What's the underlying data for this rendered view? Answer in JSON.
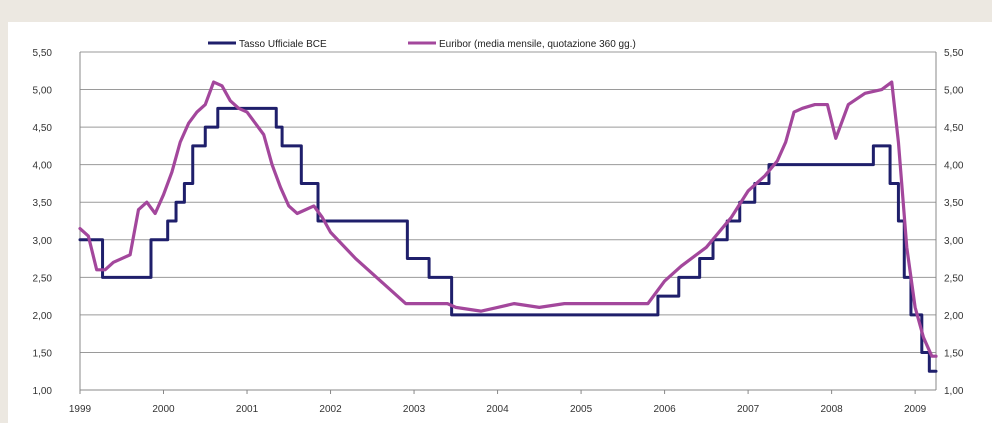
{
  "chart_data": {
    "type": "line",
    "title": "",
    "xlabel": "",
    "ylabel": "",
    "xlim": [
      1999.0,
      2009.25
    ],
    "ylim": [
      1.0,
      5.5
    ],
    "grid": true,
    "legend_position": "top",
    "x_tick_labels": [
      "1999",
      "2000",
      "2001",
      "2002",
      "2003",
      "2004",
      "2005",
      "2006",
      "2007",
      "2008",
      "2009"
    ],
    "x_tick_values": [
      1999,
      2000,
      2001,
      2002,
      2003,
      2004,
      2005,
      2006,
      2007,
      2008,
      2009
    ],
    "y_tick_values": [
      1.0,
      1.5,
      2.0,
      2.5,
      3.0,
      3.5,
      4.0,
      4.5,
      5.0,
      5.5
    ],
    "y_tick_labels_left": [
      "1,00",
      "1,50",
      "2,00",
      "2,50",
      "3,00",
      "3,50",
      "4,00",
      "4,50",
      "5,00",
      "5,50"
    ],
    "y_tick_labels_right": [
      "1,00",
      "1,50",
      "2,00",
      "2,50",
      "3,00",
      "3,50",
      "4,00",
      "4,50",
      "5,00",
      "5,50"
    ],
    "series": [
      {
        "name": "Tasso Ufficiale BCE",
        "color": "#1f1f6b",
        "step": true,
        "x": [
          1999.0,
          1999.27,
          1999.85,
          2000.05,
          2000.15,
          2000.25,
          2000.35,
          2000.5,
          2000.65,
          2000.83,
          2001.35,
          2001.42,
          2001.65,
          2001.85,
          2002.92,
          2003.18,
          2003.45,
          2005.92,
          2006.17,
          2006.42,
          2006.58,
          2006.75,
          2006.9,
          2007.08,
          2007.25,
          2007.5,
          2008.5,
          2008.7,
          2008.8,
          2008.87,
          2008.95,
          2009.0,
          2009.08,
          2009.17,
          2009.25
        ],
        "y": [
          3.0,
          2.5,
          3.0,
          3.25,
          3.5,
          3.75,
          4.25,
          4.5,
          4.75,
          4.75,
          4.5,
          4.25,
          3.75,
          3.25,
          2.75,
          2.5,
          2.0,
          2.25,
          2.5,
          2.75,
          3.0,
          3.25,
          3.5,
          3.75,
          4.0,
          4.0,
          4.25,
          3.75,
          3.25,
          2.5,
          2.0,
          2.0,
          1.5,
          1.25,
          1.25
        ]
      },
      {
        "name": "Euribor (media mensile, quotazione 360 gg.)",
        "color": "#a3479c",
        "step": false,
        "x": [
          1999.0,
          1999.1,
          1999.2,
          1999.3,
          1999.4,
          1999.5,
          1999.6,
          1999.7,
          1999.8,
          1999.9,
          2000.0,
          2000.1,
          2000.2,
          2000.3,
          2000.4,
          2000.5,
          2000.6,
          2000.7,
          2000.8,
          2000.9,
          2001.0,
          2001.1,
          2001.2,
          2001.3,
          2001.4,
          2001.5,
          2001.6,
          2001.7,
          2001.8,
          2001.9,
          2002.0,
          2002.3,
          2002.6,
          2002.9,
          2003.0,
          2003.2,
          2003.4,
          2003.5,
          2003.8,
          2004.0,
          2004.2,
          2004.5,
          2004.8,
          2005.0,
          2005.5,
          2005.8,
          2006.0,
          2006.2,
          2006.5,
          2006.8,
          2007.0,
          2007.2,
          2007.35,
          2007.45,
          2007.55,
          2007.65,
          2007.8,
          2007.95,
          2008.05,
          2008.2,
          2008.4,
          2008.6,
          2008.72,
          2008.8,
          2008.9,
          2009.0,
          2009.1,
          2009.2,
          2009.25
        ],
        "y": [
          3.15,
          3.05,
          2.6,
          2.6,
          2.7,
          2.75,
          2.8,
          3.4,
          3.5,
          3.35,
          3.6,
          3.9,
          4.3,
          4.55,
          4.7,
          4.8,
          5.1,
          5.05,
          4.85,
          4.75,
          4.7,
          4.55,
          4.4,
          4.0,
          3.7,
          3.45,
          3.35,
          3.4,
          3.45,
          3.3,
          3.1,
          2.75,
          2.45,
          2.15,
          2.15,
          2.15,
          2.15,
          2.1,
          2.05,
          2.1,
          2.15,
          2.1,
          2.15,
          2.15,
          2.15,
          2.15,
          2.45,
          2.65,
          2.9,
          3.3,
          3.65,
          3.85,
          4.05,
          4.3,
          4.7,
          4.75,
          4.8,
          4.8,
          4.35,
          4.8,
          4.95,
          5.0,
          5.1,
          4.3,
          2.9,
          2.1,
          1.7,
          1.45,
          1.45
        ]
      }
    ]
  }
}
